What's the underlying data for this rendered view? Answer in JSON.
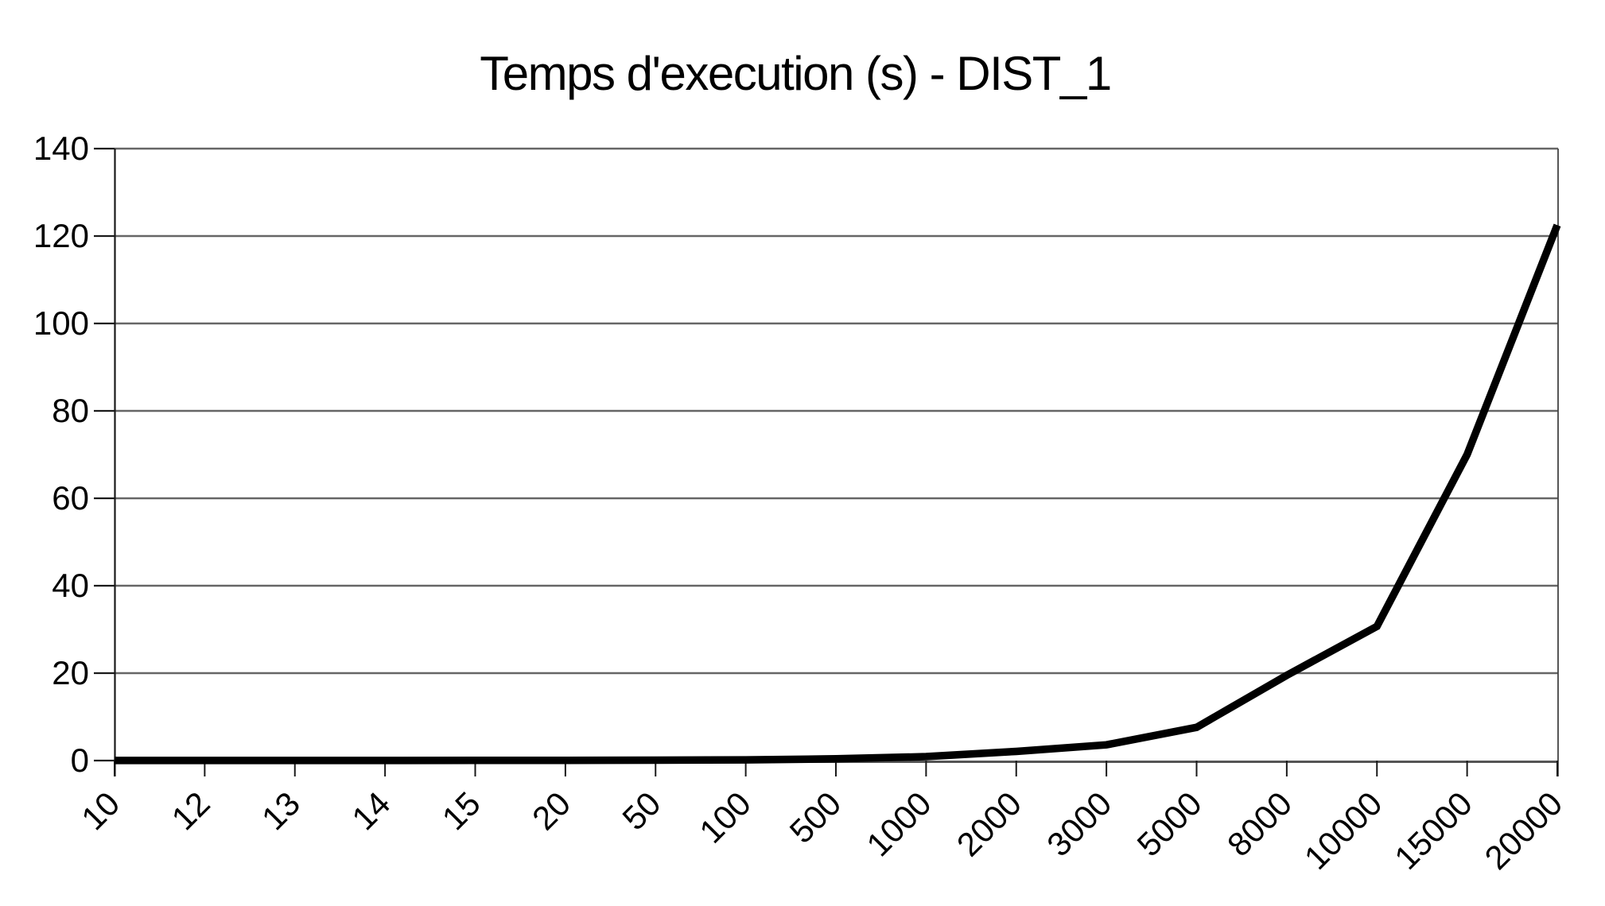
{
  "chart_data": {
    "type": "line",
    "title": "Temps d'execution (s) - DIST_1",
    "categories": [
      "10",
      "12",
      "13",
      "14",
      "15",
      "20",
      "50",
      "100",
      "500",
      "1000",
      "2000",
      "3000",
      "5000",
      "8000",
      "10000",
      "15000",
      "20000"
    ],
    "values": [
      0.02,
      0.02,
      0.03,
      0.03,
      0.04,
      0.05,
      0.1,
      0.15,
      0.4,
      0.9,
      2.1,
      3.6,
      7.6,
      19.5,
      30.7,
      70,
      122.5
    ],
    "xlabel": "",
    "ylabel": "",
    "ylim": [
      0,
      140
    ],
    "ytick_step": 20,
    "y_tick_labels": [
      "0",
      "20",
      "40",
      "60",
      "80",
      "100",
      "120",
      "140"
    ],
    "grid": "horizontal",
    "legend": "none",
    "line_color": "#000000",
    "grid_color": "#666666",
    "axis_color": "#1a1a1a",
    "x_axis_line_color": "#555555",
    "right_border_color": "#444444",
    "background": "#ffffff"
  }
}
